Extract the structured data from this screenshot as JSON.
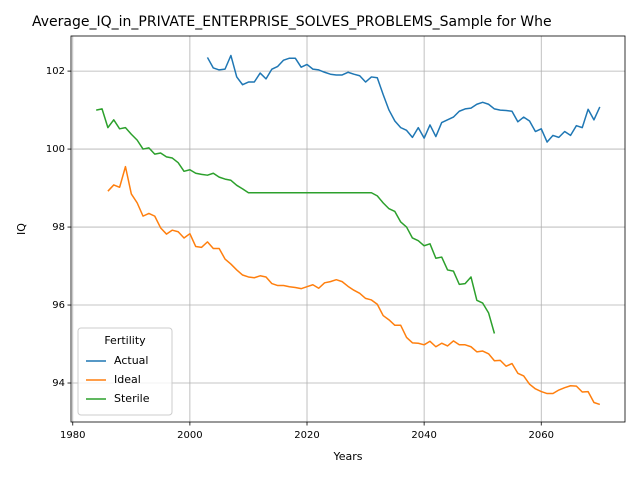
{
  "chart_data": {
    "type": "line",
    "title": "Average_IQ_in_PRIVATE_ENTERPRISE_SOLVES_PROBLEMS_Sample for Whe",
    "x_label": "Years",
    "y_label": "IQ",
    "legend_title": "Fertility",
    "legend_position": "lower left",
    "grid": true,
    "xlim": [
      1979.7,
      2074.3
    ],
    "xticks": [
      1980,
      2000,
      2020,
      2040,
      2060
    ],
    "ylim": [
      93.0,
      102.9
    ],
    "yticks": [
      94,
      96,
      98,
      100,
      102
    ],
    "x": [
      1984,
      1985,
      1986,
      1987,
      1988,
      1989,
      1990,
      1991,
      1992,
      1993,
      1994,
      1995,
      1996,
      1997,
      1998,
      1999,
      2000,
      2001,
      2002,
      2003,
      2004,
      2005,
      2006,
      2007,
      2008,
      2009,
      2010,
      2011,
      2012,
      2013,
      2014,
      2015,
      2016,
      2017,
      2018,
      2019,
      2020,
      2021,
      2022,
      2023,
      2024,
      2025,
      2026,
      2027,
      2028,
      2029,
      2030,
      2031,
      2032,
      2033,
      2034,
      2035,
      2036,
      2037,
      2038,
      2039,
      2040,
      2041,
      2042,
      2043,
      2044,
      2045,
      2046,
      2047,
      2048,
      2049,
      2050,
      2051,
      2052,
      2053,
      2054,
      2055,
      2056,
      2057,
      2058,
      2059,
      2060,
      2061,
      2062,
      2063,
      2064,
      2065,
      2066,
      2067,
      2068,
      2069,
      2070
    ],
    "series": [
      {
        "name": "Actual",
        "color": "#1f77b4",
        "values": [
          null,
          null,
          null,
          null,
          null,
          null,
          null,
          null,
          null,
          null,
          null,
          null,
          null,
          null,
          null,
          null,
          null,
          null,
          null,
          102.35,
          102.08,
          102.03,
          102.05,
          102.4,
          101.85,
          101.65,
          101.72,
          101.72,
          101.95,
          101.8,
          102.05,
          102.12,
          102.28,
          102.33,
          102.33,
          102.1,
          102.17,
          102.05,
          102.03,
          101.97,
          101.92,
          101.9,
          101.9,
          101.97,
          101.92,
          101.88,
          101.72,
          101.85,
          101.83,
          101.4,
          101.0,
          100.72,
          100.55,
          100.48,
          100.3,
          100.55,
          100.28,
          100.62,
          100.32,
          100.68,
          100.75,
          100.82,
          100.97,
          101.03,
          101.05,
          101.15,
          101.2,
          101.15,
          101.03,
          101.0,
          100.99,
          100.97,
          100.7,
          100.82,
          100.72,
          100.45,
          100.52,
          100.18,
          100.35,
          100.3,
          100.45,
          100.35,
          100.6,
          100.55,
          101.02,
          100.75,
          101.08
        ]
      },
      {
        "name": "Ideal",
        "color": "#ff7f0e",
        "values": [
          null,
          null,
          98.92,
          99.08,
          99.02,
          99.55,
          98.85,
          98.62,
          98.28,
          98.35,
          98.28,
          97.98,
          97.82,
          97.92,
          97.88,
          97.72,
          97.83,
          97.5,
          97.48,
          97.62,
          97.45,
          97.45,
          97.18,
          97.05,
          96.9,
          96.77,
          96.72,
          96.7,
          96.75,
          96.72,
          96.55,
          96.5,
          96.5,
          96.47,
          96.45,
          96.42,
          96.47,
          96.52,
          96.43,
          96.57,
          96.6,
          96.65,
          96.6,
          96.48,
          96.38,
          96.3,
          96.17,
          96.13,
          96.02,
          95.73,
          95.62,
          95.48,
          95.48,
          95.17,
          95.03,
          95.02,
          94.98,
          95.07,
          94.93,
          95.02,
          94.95,
          95.08,
          94.98,
          94.98,
          94.93,
          94.8,
          94.82,
          94.75,
          94.57,
          94.58,
          94.43,
          94.5,
          94.25,
          94.18,
          93.97,
          93.85,
          93.78,
          93.73,
          93.73,
          93.82,
          93.88,
          93.93,
          93.92,
          93.77,
          93.78,
          93.5,
          93.45
        ]
      },
      {
        "name": "Sterile",
        "color": "#2ca02c",
        "values": [
          101.0,
          101.03,
          100.55,
          100.75,
          100.52,
          100.55,
          100.38,
          100.23,
          100.0,
          100.03,
          99.87,
          99.9,
          99.8,
          99.77,
          99.65,
          99.43,
          99.47,
          99.38,
          99.35,
          99.33,
          99.38,
          99.28,
          99.23,
          99.2,
          99.07,
          98.98,
          98.88,
          98.88,
          98.88,
          98.88,
          98.88,
          98.88,
          98.88,
          98.88,
          98.88,
          98.88,
          98.88,
          98.88,
          98.88,
          98.88,
          98.88,
          98.88,
          98.88,
          98.88,
          98.88,
          98.88,
          98.88,
          98.88,
          98.8,
          98.62,
          98.47,
          98.4,
          98.13,
          98.0,
          97.72,
          97.65,
          97.52,
          97.57,
          97.2,
          97.23,
          96.9,
          96.87,
          96.53,
          96.55,
          96.72,
          96.12,
          96.05,
          95.8,
          95.27,
          null,
          null,
          null,
          null,
          null,
          null,
          null,
          null,
          null,
          null,
          null,
          null,
          null,
          null,
          null,
          null,
          null,
          null
        ]
      }
    ]
  }
}
